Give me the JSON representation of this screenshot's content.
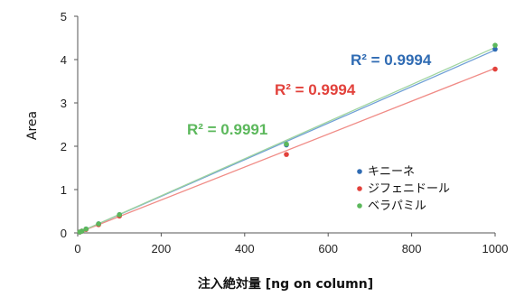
{
  "chart_data": {
    "type": "scatter",
    "title": "",
    "xlabel": "注入絶対量 [ng on column]",
    "ylabel": "Area",
    "xlim": [
      0,
      1000
    ],
    "ylim": [
      0,
      5
    ],
    "xticks": [
      0,
      200,
      400,
      600,
      800,
      1000
    ],
    "yticks": [
      0,
      1,
      2,
      3,
      4,
      5
    ],
    "grid": false,
    "legend_position": "bottom-right",
    "series": [
      {
        "name": "キニーネ",
        "color": "#2f6bb3",
        "x": [
          5,
          10,
          20,
          50,
          100,
          500,
          1000
        ],
        "y": [
          0.02,
          0.04,
          0.09,
          0.21,
          0.42,
          2.03,
          4.24
        ],
        "trendline": {
          "x": [
            0,
            1000
          ],
          "y": [
            0.0,
            4.22
          ]
        },
        "trend_color": "#6f9fd6",
        "r2_label": "R² = 0.9994"
      },
      {
        "name": "ジフェニドール",
        "color": "#e2413b",
        "x": [
          5,
          10,
          20,
          50,
          100,
          500,
          1000
        ],
        "y": [
          0.02,
          0.04,
          0.08,
          0.19,
          0.39,
          1.81,
          3.78
        ],
        "trendline": {
          "x": [
            0,
            1000
          ],
          "y": [
            0.0,
            3.8
          ]
        },
        "trend_color": "#f08b86",
        "r2_label": "R² = 0.9994"
      },
      {
        "name": "ベラパミル",
        "color": "#5cb85c",
        "x": [
          5,
          10,
          20,
          50,
          100,
          500,
          1000
        ],
        "y": [
          0.02,
          0.04,
          0.09,
          0.21,
          0.42,
          2.05,
          4.33
        ],
        "trendline": {
          "x": [
            0,
            1000
          ],
          "y": [
            0.0,
            4.28
          ]
        },
        "trend_color": "#9fd49f",
        "r2_label": "R² = 0.9991"
      }
    ]
  }
}
